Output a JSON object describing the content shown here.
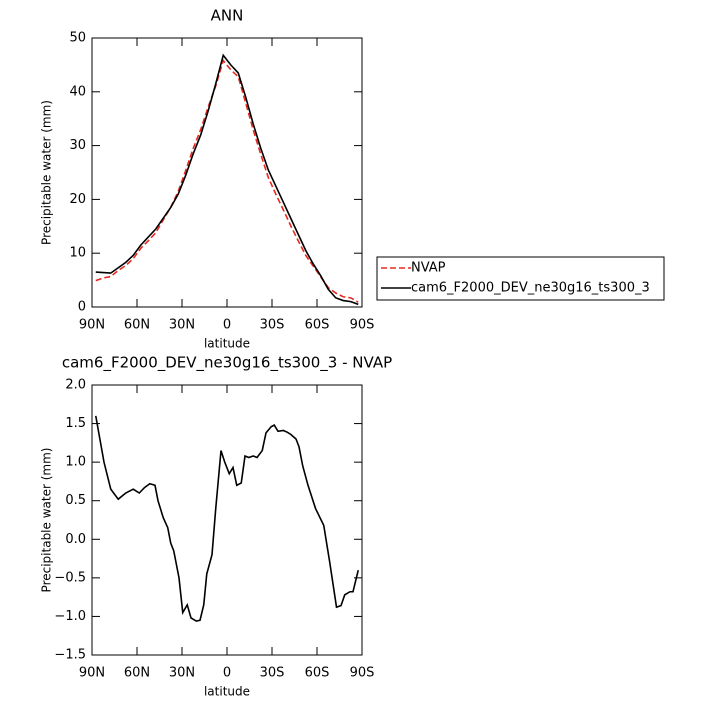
{
  "chart_data": [
    {
      "type": "line",
      "title": "ANN",
      "xlabel": "latitude",
      "ylabel": "Precipitable water (mm)",
      "x": [
        87.5,
        82.5,
        77.5,
        72.5,
        67.5,
        62.5,
        57.5,
        52.5,
        47.5,
        42.5,
        37.5,
        32.5,
        27.5,
        22.5,
        17.5,
        12.5,
        7.5,
        2.5,
        -2.5,
        -7.5,
        -12.5,
        -17.5,
        -22.5,
        -27.5,
        -32.5,
        -37.5,
        -42.5,
        -47.5,
        -52.5,
        -57.5,
        -62.5,
        -67.5,
        -72.5,
        -77.5,
        -82.5,
        -87.5
      ],
      "series": [
        {
          "name": "NVAP",
          "color": "#e8281e",
          "dash": true,
          "values": [
            4.9,
            5.4,
            5.65,
            6.8,
            7.7,
            9.0,
            10.9,
            12.3,
            13.8,
            16.2,
            18.55,
            21.5,
            25.4,
            29.5,
            33.0,
            37.2,
            41.1,
            45.8,
            44.1,
            42.8,
            37.9,
            32.9,
            28.4,
            24.1,
            21.0,
            18.1,
            15.1,
            12.3,
            9.6,
            7.6,
            5.6,
            3.6,
            2.6,
            1.9,
            1.7,
            0.9
          ]
        },
        {
          "name": "cam6_F2000_DEV_ne30g16_ts300_3",
          "color": "#000000",
          "dash": false,
          "values": [
            6.5,
            6.4,
            6.3,
            7.3,
            8.3,
            9.6,
            11.5,
            13.0,
            14.5,
            16.5,
            18.5,
            21.0,
            24.5,
            28.5,
            32.0,
            36.5,
            41.5,
            46.8,
            45.0,
            43.5,
            39.0,
            34.0,
            29.5,
            25.5,
            22.5,
            19.5,
            16.5,
            13.5,
            10.5,
            8.0,
            5.8,
            3.3,
            1.7,
            1.2,
            1.0,
            0.5
          ]
        }
      ],
      "xlim": [
        90,
        -90
      ],
      "xticks": [
        {
          "value": 90,
          "label": "90N"
        },
        {
          "value": 60,
          "label": "60N"
        },
        {
          "value": 30,
          "label": "30N"
        },
        0,
        {
          "value": -30,
          "label": "30S"
        },
        {
          "value": -60,
          "label": "60S"
        },
        {
          "value": -90,
          "label": "90S"
        }
      ],
      "ylim": [
        0,
        50
      ],
      "yticks": [
        0,
        10,
        20,
        30,
        40,
        50
      ],
      "legend": "outside-right"
    },
    {
      "type": "line",
      "title": "cam6_F2000_DEV_ne30g16_ts300_3 - NVAP",
      "xlabel": "latitude",
      "ylabel": "Precipitable water (mm)",
      "x": [
        87.5,
        82,
        77.5,
        72.5,
        67.5,
        62.5,
        58.5,
        55,
        51.5,
        48,
        46,
        42.5,
        39.5,
        37.5,
        35.5,
        32,
        29.5,
        26.5,
        24,
        20.5,
        18,
        15.5,
        13.5,
        10,
        7.5,
        4,
        1.5,
        -1.5,
        -4,
        -6.5,
        -9.5,
        -12,
        -14.5,
        -17.5,
        -20,
        -23.5,
        -26,
        -29.5,
        -31.5,
        -34,
        -37.5,
        -40,
        -42.5,
        -46,
        -48,
        -50.5,
        -54,
        -59,
        -64.5,
        -68.5,
        -73,
        -76,
        -78.5,
        -82,
        -84,
        -87.5
      ],
      "values": [
        1.6,
        1.0,
        0.65,
        0.52,
        0.6,
        0.65,
        0.6,
        0.67,
        0.72,
        0.7,
        0.5,
        0.28,
        0.15,
        -0.05,
        -0.15,
        -0.5,
        -0.95,
        -0.85,
        -1.02,
        -1.06,
        -1.05,
        -0.85,
        -0.45,
        -0.2,
        0.4,
        1.15,
        1.0,
        0.85,
        0.93,
        0.7,
        0.73,
        1.08,
        1.06,
        1.08,
        1.06,
        1.15,
        1.38,
        1.46,
        1.48,
        1.4,
        1.41,
        1.39,
        1.36,
        1.3,
        1.2,
        0.95,
        0.7,
        0.4,
        0.18,
        -0.3,
        -0.88,
        -0.86,
        -0.72,
        -0.68,
        -0.68,
        -0.4
      ],
      "color": "#000000",
      "xlim": [
        90,
        -90
      ],
      "xticks": [
        {
          "value": 90,
          "label": "90N"
        },
        {
          "value": 60,
          "label": "60N"
        },
        {
          "value": 30,
          "label": "30N"
        },
        0,
        {
          "value": -30,
          "label": "30S"
        },
        {
          "value": -60,
          "label": "60S"
        },
        {
          "value": -90,
          "label": "90S"
        }
      ],
      "ylim": [
        -1.5,
        2.0
      ],
      "yticks": [
        {
          "value": -1.5,
          "label": "−1.5"
        },
        {
          "value": -1.0,
          "label": "−1.0"
        },
        {
          "value": -0.5,
          "label": "−0.5"
        },
        {
          "value": 0.0,
          "label": "0.0"
        },
        0.5,
        {
          "value": 1.0,
          "label": "1.0"
        },
        1.5,
        {
          "value": 2.0,
          "label": "2.0"
        }
      ]
    }
  ]
}
